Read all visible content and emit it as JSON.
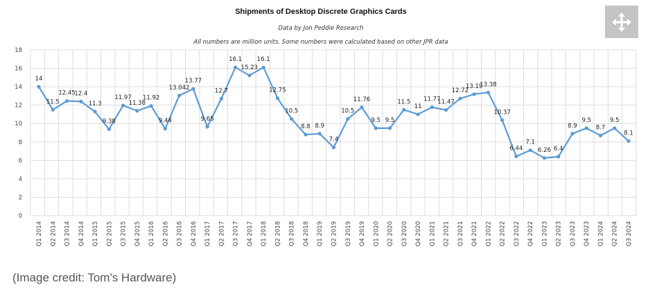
{
  "chart_data": {
    "type": "line",
    "title": "Shipments of Desktop Discrete Graphics Cards",
    "subtitle": "Data by Jon Peddie Research",
    "note": "All numbers are million units. Some numbers were calculated based on other JPR data",
    "xlabel": "",
    "ylabel": "",
    "ylim": [
      0,
      18
    ],
    "yticks": [
      0,
      2,
      4,
      6,
      8,
      10,
      12,
      14,
      16,
      18
    ],
    "grid": true,
    "series_color": "#5b9bd5",
    "categories": [
      "Q1 2014",
      "Q2 2014",
      "Q3 2014",
      "Q4 2014",
      "Q1 2015",
      "Q2 2015",
      "Q3 2015",
      "Q4 2015",
      "Q1 2016",
      "Q2 2016",
      "Q3 2016",
      "Q4 2016",
      "Q1 2017",
      "Q2 2017",
      "Q3 2017",
      "Q4 2017",
      "Q1 2018",
      "Q2 2018",
      "Q3 2018",
      "Q4 2018",
      "Q1 2019",
      "Q2 2019",
      "Q3 2019",
      "Q4 2019",
      "Q1 2020",
      "Q2 2020",
      "Q3 2020",
      "Q4 2020",
      "Q1 2021",
      "Q2 2021",
      "Q3 2021",
      "Q4 2021",
      "Q1 2022",
      "Q2 2022",
      "Q3 2022",
      "Q4 2022",
      "Q1 2023",
      "Q2 2023",
      "Q3 2023",
      "Q4 2023",
      "Q1 2024",
      "Q2 2024",
      "Q3 2024"
    ],
    "values": [
      14,
      11.5,
      12.45,
      12.4,
      11.3,
      9.38,
      11.97,
      11.38,
      11.92,
      9.44,
      13.042,
      13.77,
      9.65,
      12.7,
      16.1,
      15.23,
      16.1,
      12.75,
      10.5,
      8.8,
      8.9,
      7.4,
      10.5,
      11.76,
      9.5,
      9.5,
      11.5,
      11,
      11.77,
      11.47,
      12.72,
      13.19,
      13.38,
      10.37,
      6.44,
      7.1,
      6.26,
      6.4,
      8.9,
      9.5,
      8.7,
      9.5,
      8.1
    ],
    "data_labels": [
      "14",
      "11.5",
      "12.45",
      "12.4",
      "11.3",
      "9.38",
      "11.97",
      "11.38",
      "11.92",
      "9.44",
      "13.042",
      "13.77",
      "9.65",
      "12.7",
      "16.1",
      "15.23",
      "16.1",
      "12.75",
      "10.5",
      "8.8",
      "8.9",
      "7.4",
      "10.5",
      "11.76",
      "9.5",
      "9.5",
      "11.5",
      "11",
      "11.77",
      "11.47",
      "12.72",
      "13.19",
      "13.38",
      "10.37",
      "6.44",
      "7.1",
      "6.26",
      "6.4",
      "8.9",
      "9.5",
      "8.7",
      "9.5",
      "8.1"
    ]
  },
  "expand_icon": "expand-arrows-icon",
  "credit": "(Image credit: Tom's Hardware)"
}
